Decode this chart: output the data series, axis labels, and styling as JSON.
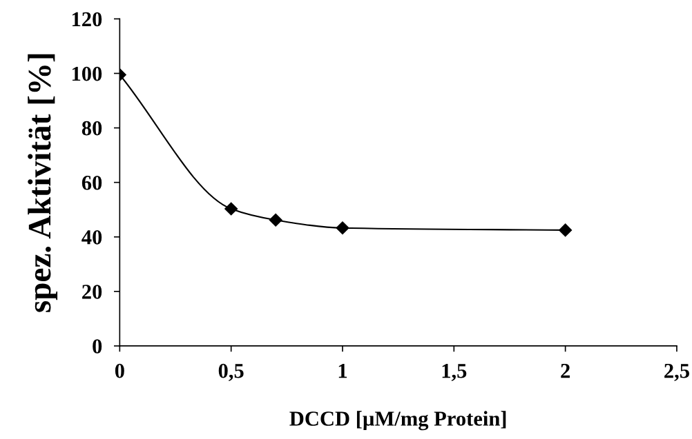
{
  "chart_data": {
    "type": "line",
    "xlabel": "DCCD [µM/mg Protein]",
    "ylabel": "spez. Aktivität [%]",
    "x": [
      0,
      0.5,
      0.7,
      1,
      2
    ],
    "series": [
      {
        "color": "#000000",
        "values": [
          99.5,
          50.3,
          46.2,
          43.3,
          42.5
        ]
      }
    ],
    "marker": "diamond",
    "line_style": "solid",
    "grid": false,
    "legend": false,
    "xlim": [
      0,
      2.5
    ],
    "xticks": [
      0,
      {
        "value": 0.5,
        "label": "0,5"
      },
      1,
      {
        "value": 1.5,
        "label": "1,5"
      },
      2,
      {
        "value": 2.5,
        "label": "2,5"
      }
    ],
    "ylim": [
      0,
      120
    ],
    "yticks": [
      0,
      20,
      40,
      60,
      80,
      100,
      120
    ]
  }
}
